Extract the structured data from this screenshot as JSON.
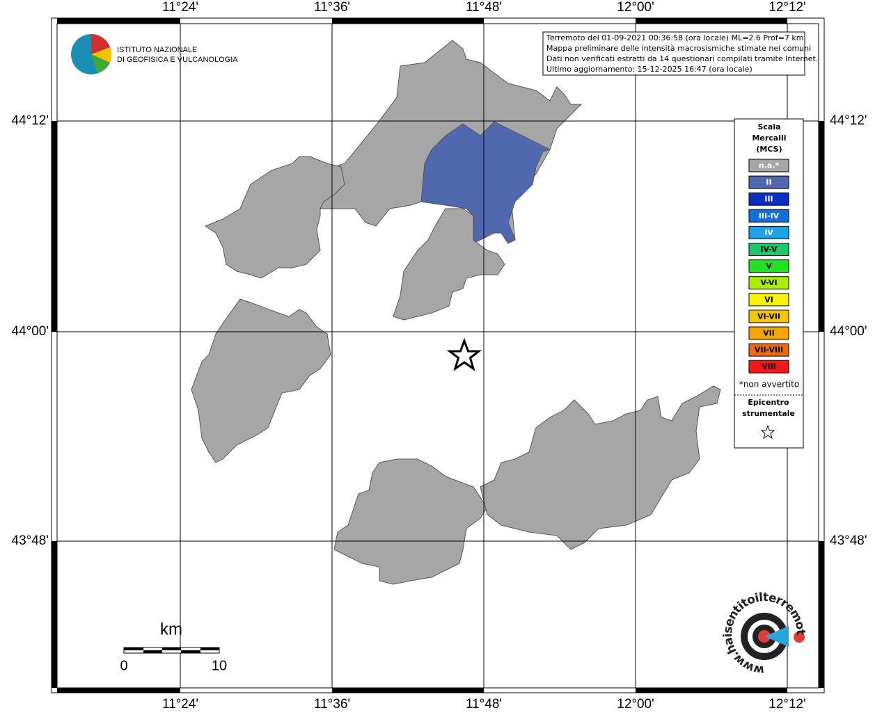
{
  "longitude_labels": [
    "11°24'",
    "11°36'",
    "11°48'",
    "12°00'",
    "12°12'"
  ],
  "latitude_labels": [
    "44°12'",
    "44°00'",
    "43°48'"
  ],
  "info": [
    "Terremoto del 01-09-2021 00:36:58 (ora locale) ML=2.6 Prof=7 km",
    "Mappa preliminare delle intensità macrosismiche stimate nei comuni",
    "Dati non verificati estratti da 14 questionari compilati tramite Internet.",
    "Ultimo aggiornamento: 15-12-2025 16:47 (ora locale)"
  ],
  "logo": [
    "ISTITUTO NAZIONALE",
    "DI GEOFISICA E VULCANOLOGIA"
  ],
  "legend": {
    "title": [
      "Scala",
      "Mercalli",
      "(MCS)"
    ],
    "items": [
      {
        "label": "n.a.*",
        "color": "#a6a6a6"
      },
      {
        "label": "II",
        "color": "#4f68b0"
      },
      {
        "label": "III",
        "color": "#0a30c0"
      },
      {
        "label": "III-IV",
        "color": "#1070d8"
      },
      {
        "label": "IV",
        "color": "#1aa3e6"
      },
      {
        "label": "IV-V",
        "color": "#1ec86a"
      },
      {
        "label": "V",
        "color": "#22e022"
      },
      {
        "label": "V-VI",
        "color": "#aaee00"
      },
      {
        "label": "VI",
        "color": "#f5f500"
      },
      {
        "label": "VI-VII",
        "color": "#f7c600"
      },
      {
        "label": "VII",
        "color": "#f7a600"
      },
      {
        "label": "VII-VIII",
        "color": "#f06a10"
      },
      {
        "label": "VIII",
        "color": "#ee1a1a"
      }
    ],
    "note": "*non avvertito",
    "epicenter": [
      "Epicentro",
      "strumentale"
    ]
  },
  "scale": {
    "unit": "km",
    "labels": [
      "0",
      "10"
    ]
  },
  "site": "www.haisentitoilterremoto.it"
}
